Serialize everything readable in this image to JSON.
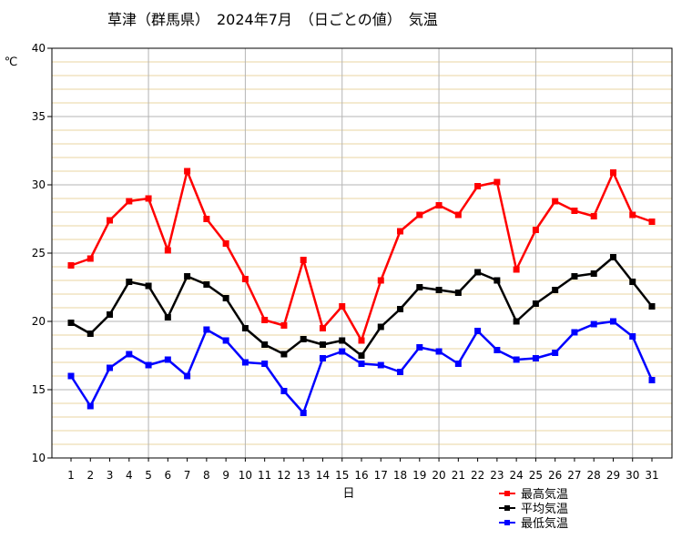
{
  "chart_data": {
    "type": "line",
    "title": "草津（群馬県）　2024年7月　（日ごとの値）　気温",
    "xlabel": "日",
    "ylabel": "℃",
    "x": [
      1,
      2,
      3,
      4,
      5,
      6,
      7,
      8,
      9,
      10,
      11,
      12,
      13,
      14,
      15,
      16,
      17,
      18,
      19,
      20,
      21,
      22,
      23,
      24,
      25,
      26,
      27,
      28,
      29,
      30,
      31
    ],
    "ylim": [
      10,
      40
    ],
    "yticks": [
      10,
      15,
      20,
      25,
      30,
      35,
      40
    ],
    "grid": true,
    "legend": "bottom-right",
    "colors": {
      "minor_grid": "#e8d4a0",
      "major_grid": "#b4b4b4"
    },
    "series": [
      {
        "name": "最高気温",
        "color": "#ff0000",
        "values": [
          24.1,
          24.6,
          27.4,
          28.8,
          29.0,
          25.2,
          31.0,
          27.5,
          25.7,
          23.1,
          20.1,
          19.7,
          24.5,
          19.5,
          21.1,
          18.6,
          23.0,
          26.6,
          27.8,
          28.5,
          27.8,
          29.9,
          30.2,
          23.8,
          26.7,
          28.8,
          28.1,
          27.7,
          30.9,
          27.8,
          27.3
        ]
      },
      {
        "name": "平均気温",
        "color": "#000000",
        "values": [
          19.9,
          19.1,
          20.5,
          22.9,
          22.6,
          20.3,
          23.3,
          22.7,
          21.7,
          19.5,
          18.3,
          17.6,
          18.7,
          18.3,
          18.6,
          17.5,
          19.6,
          20.9,
          22.5,
          22.3,
          22.1,
          23.6,
          23.0,
          20.0,
          21.3,
          22.3,
          23.3,
          23.5,
          24.7,
          22.9,
          21.1
        ]
      },
      {
        "name": "最低気温",
        "color": "#0000ff",
        "values": [
          16.0,
          13.8,
          16.6,
          17.6,
          16.8,
          17.2,
          16.0,
          19.4,
          18.6,
          17.0,
          16.9,
          14.9,
          13.3,
          17.3,
          17.8,
          16.9,
          16.8,
          16.3,
          18.1,
          17.8,
          16.9,
          19.3,
          17.9,
          17.2,
          17.3,
          17.7,
          19.2,
          19.8,
          20.0,
          18.9,
          15.7
        ]
      }
    ]
  }
}
